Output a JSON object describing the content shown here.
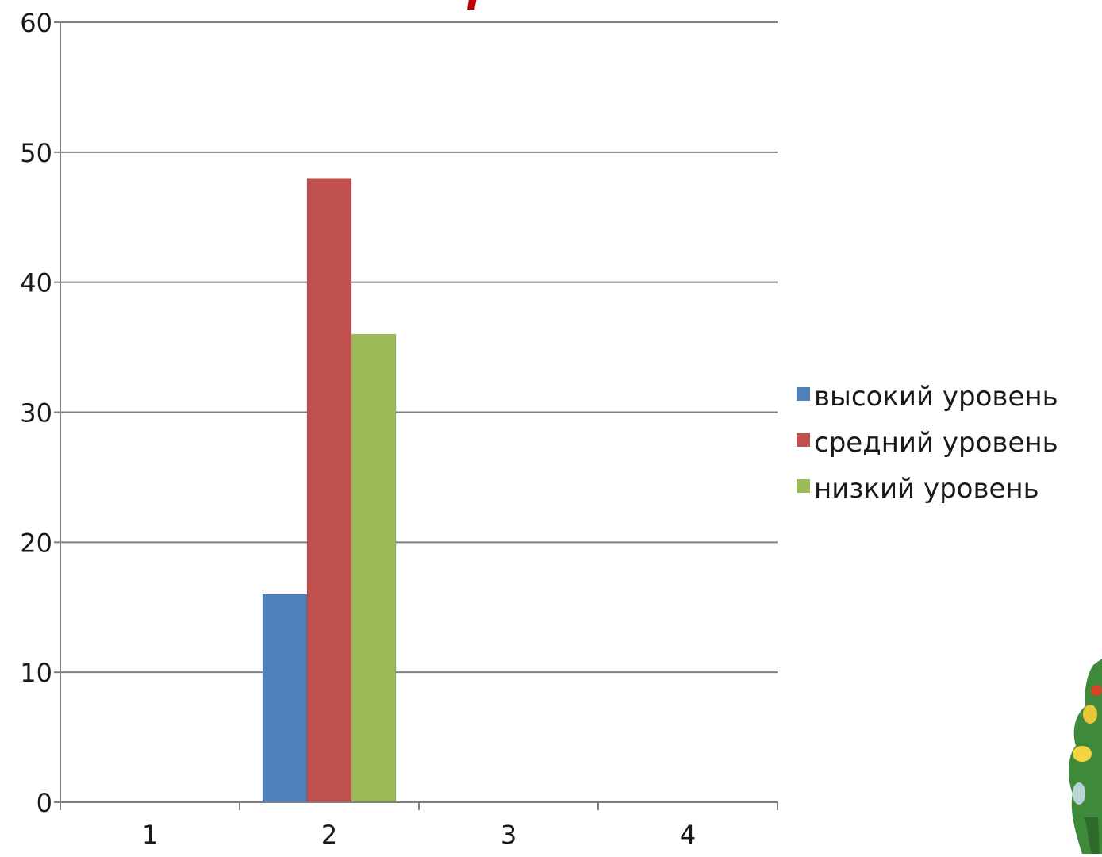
{
  "chart_data": {
    "type": "bar",
    "categories": [
      "1",
      "2",
      "3",
      "4"
    ],
    "series": [
      {
        "name": "высокий уровень",
        "values": [
          0,
          16,
          0,
          0
        ],
        "color": "#4f81bd"
      },
      {
        "name": "средний уровень",
        "values": [
          0,
          48,
          0,
          0
        ],
        "color": "#c0504d"
      },
      {
        "name": "низкий уровень",
        "values": [
          0,
          36,
          0,
          0
        ],
        "color": "#9bbb59"
      }
    ],
    "ylim": [
      0,
      60
    ],
    "yticks": [
      "0",
      "10",
      "20",
      "30",
      "40",
      "50",
      "60"
    ],
    "grid": true,
    "legend_position": "right",
    "title": "",
    "xlabel": "",
    "ylabel": ""
  },
  "colors": {
    "title_fragment": "#c00000",
    "gridline": "#808080",
    "axis": "#808080",
    "text": "#1a1a1a"
  },
  "decorations": {
    "bottom_right_clipart": "cartoon-character-art"
  }
}
